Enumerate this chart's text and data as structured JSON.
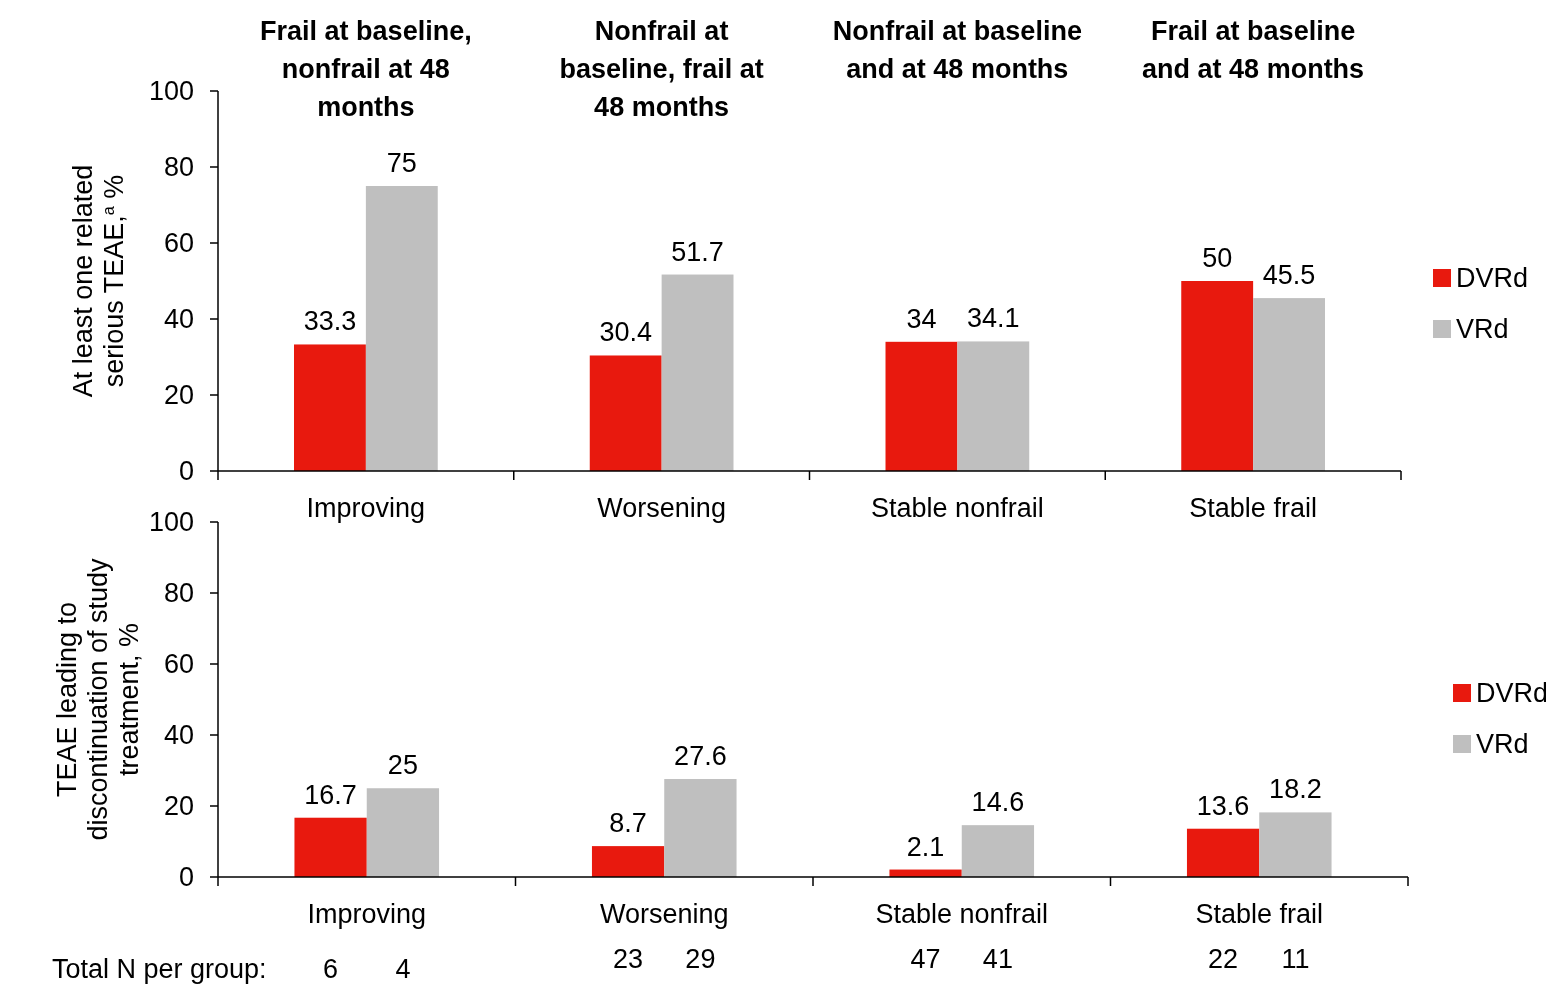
{
  "chart_data": [
    {
      "type": "bar",
      "ylabel": "At least one related serious TEAE,$^{a}$ %",
      "categories": [
        "Improving",
        "Worsening",
        "Stable nonfrail",
        "Stable frail"
      ],
      "series": [
        {
          "name": "DVRd",
          "color": "#e8190e",
          "values": [
            33.3,
            30.4,
            34,
            50
          ]
        },
        {
          "name": "VRd",
          "color": "#bfbfbf",
          "values": [
            75,
            51.7,
            34.1,
            45.5
          ]
        }
      ],
      "ylim": [
        0,
        100
      ],
      "yticks": [
        0,
        20,
        40,
        60,
        80,
        100
      ],
      "data_labels": true,
      "legend": "right",
      "annotations": [
        "Frail at baseline, nonfrail at 48 months",
        "Nonfrail at baseline, frail at 48 months",
        "Nonfrail at baseline and at 48 months",
        "Frail at baseline and at 48 months"
      ]
    },
    {
      "type": "bar",
      "ylabel": "TEAE leading to discontinuation of study treatment, %",
      "categories": [
        "Improving",
        "Worsening",
        "Stable nonfrail",
        "Stable frail"
      ],
      "series": [
        {
          "name": "DVRd",
          "color": "#e8190e",
          "values": [
            16.7,
            8.7,
            2.1,
            13.6
          ]
        },
        {
          "name": "VRd",
          "color": "#bfbfbf",
          "values": [
            25,
            27.6,
            14.6,
            18.2
          ]
        }
      ],
      "ylim": [
        0,
        100
      ],
      "yticks": [
        0,
        20,
        40,
        60,
        80,
        100
      ],
      "data_labels": true,
      "legend": "right",
      "annotations": [
        "Total N per group:",
        "6",
        "4",
        "23",
        "29",
        "47",
        "41",
        "22",
        "11"
      ]
    }
  ]
}
